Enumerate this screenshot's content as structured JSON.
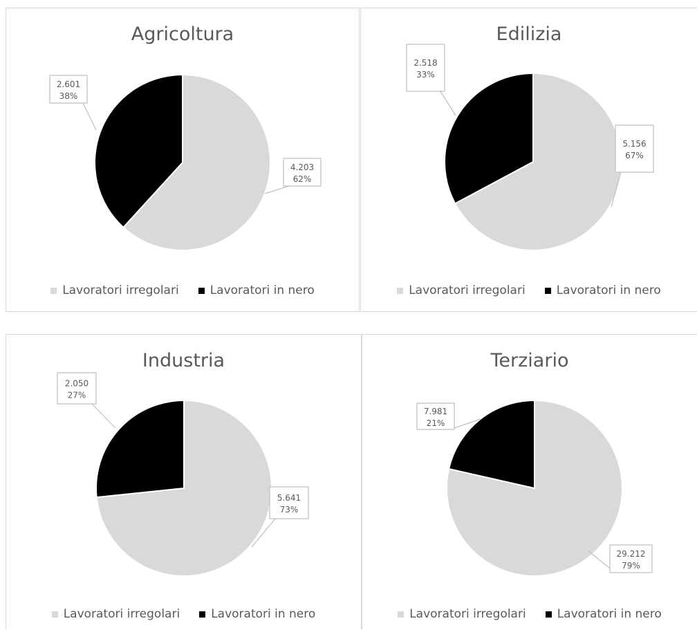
{
  "colors": {
    "irregolari": "#d9d9d9",
    "nero": "#000000",
    "text": "#595959",
    "border": "#d9d9d9"
  },
  "chart_data": [
    {
      "type": "pie",
      "title": "Agricoltura",
      "categories": [
        "Lavoratori irregolari",
        "Lavoratori in nero"
      ],
      "values": [
        4203,
        2601
      ],
      "value_labels": [
        "4.203",
        "2.601"
      ],
      "percent_labels": [
        "62%",
        "38%"
      ],
      "legend": "bottom"
    },
    {
      "type": "pie",
      "title": "Edilizia",
      "categories": [
        "Lavoratori irregolari",
        "Lavoratori in nero"
      ],
      "values": [
        5156,
        2518
      ],
      "value_labels": [
        "5.156",
        "2.518"
      ],
      "percent_labels": [
        "67%",
        "33%"
      ],
      "legend": "bottom"
    },
    {
      "type": "pie",
      "title": "Industria",
      "categories": [
        "Lavoratori irregolari",
        "Lavoratori in nero"
      ],
      "values": [
        5641,
        2050
      ],
      "value_labels": [
        "5.641",
        "2.050"
      ],
      "percent_labels": [
        "73%",
        "27%"
      ],
      "legend": "bottom"
    },
    {
      "type": "pie",
      "title": "Terziario",
      "categories": [
        "Lavoratori irregolari",
        "Lavoratori in nero"
      ],
      "values": [
        29212,
        7981
      ],
      "value_labels": [
        "29.212",
        "7.981"
      ],
      "percent_labels": [
        "79%",
        "21%"
      ],
      "legend": "bottom"
    }
  ]
}
